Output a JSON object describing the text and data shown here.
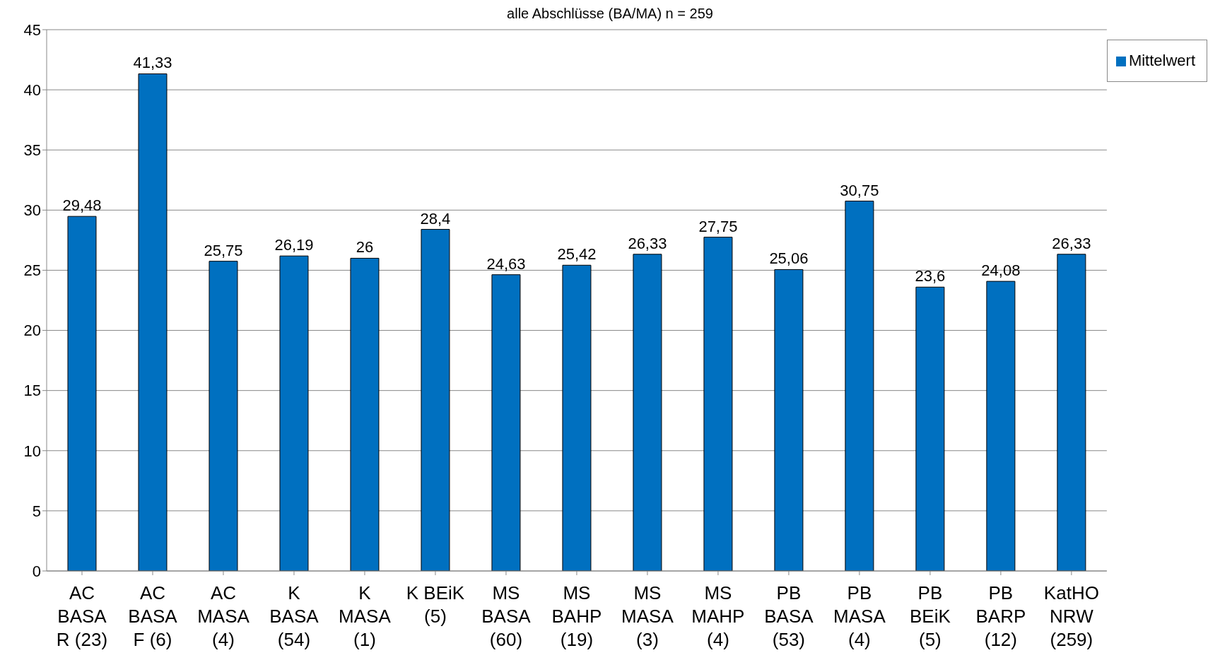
{
  "chart_data": {
    "type": "bar",
    "title": "alle Abschlüsse (BA/MA) n = 259",
    "categories": [
      "AC BASA R (23)",
      "AC BASA F (6)",
      "AC MASA (4)",
      "K BASA (54)",
      "K MASA (1)",
      "K BEiK (5)",
      "MS BASA (60)",
      "MS BAHP (19)",
      "MS MASA (3)",
      "MS MAHP (4)",
      "PB BASA (53)",
      "PB MASA (4)",
      "PB BEiK (5)",
      "PB BARP (12)",
      "KatHO NRW (259)"
    ],
    "series": [
      {
        "name": "Mittelwert",
        "color": "#0070c0",
        "values": [
          29.48,
          41.33,
          25.75,
          26.19,
          26,
          28.4,
          24.63,
          25.42,
          26.33,
          27.75,
          25.06,
          30.75,
          23.6,
          24.08,
          26.33
        ],
        "value_labels": [
          "29,48",
          "41,33",
          "25,75",
          "26,19",
          "26",
          "28,4",
          "24,63",
          "25,42",
          "26,33",
          "27,75",
          "25,06",
          "30,75",
          "23,6",
          "24,08",
          "26,33"
        ]
      }
    ],
    "ylim": [
      0,
      45
    ],
    "yticks": [
      0,
      5,
      10,
      15,
      20,
      25,
      30,
      35,
      40,
      45
    ],
    "grid": "y",
    "legend": "top right"
  }
}
